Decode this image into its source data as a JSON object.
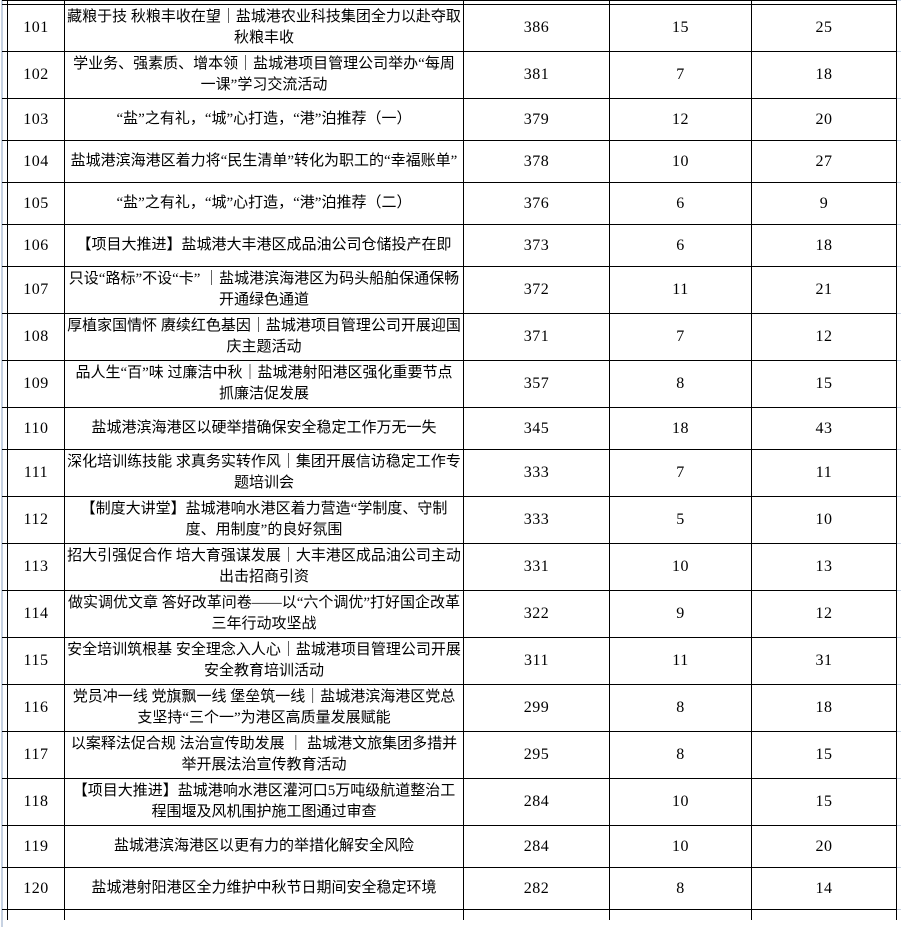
{
  "colors": {
    "table_border": "#000000",
    "sheet_gridline": "#c7d2e2",
    "text": "#000000",
    "background": "#ffffff"
  },
  "table": {
    "rows": [
      {
        "no": "101",
        "title": "藏粮于技  秋粮丰收在望｜盐城港农业科技集团全力以赴夺取秋粮丰收",
        "v1": "386",
        "v2": "15",
        "v3": "25"
      },
      {
        "no": "102",
        "title": "学业务、强素质、增本领｜盐城港项目管理公司举办“每周一课”学习交流活动",
        "v1": "381",
        "v2": "7",
        "v3": "18"
      },
      {
        "no": "103",
        "title": "“盐”之有礼，“城”心打造，“港”泊推荐（一）",
        "v1": "379",
        "v2": "12",
        "v3": "20"
      },
      {
        "no": "104",
        "title": "盐城港滨海港区着力将“民生清单”转化为职工的“幸福账单”",
        "v1": "378",
        "v2": "10",
        "v3": "27"
      },
      {
        "no": "105",
        "title": "“盐”之有礼，“城”心打造，“港”泊推荐（二）",
        "v1": "376",
        "v2": "6",
        "v3": "9"
      },
      {
        "no": "106",
        "title": "【项目大推进】盐城港大丰港区成品油公司仓储投产在即",
        "v1": "373",
        "v2": "6",
        "v3": "18"
      },
      {
        "no": "107",
        "title": "只设“路标”不设“卡” ｜盐城港滨海港区为码头船舶保通保畅开通绿色通道",
        "v1": "372",
        "v2": "11",
        "v3": "21"
      },
      {
        "no": "108",
        "title": "厚植家国情怀  赓续红色基因｜盐城港项目管理公司开展迎国庆主题活动",
        "v1": "371",
        "v2": "7",
        "v3": "12"
      },
      {
        "no": "109",
        "title": "品人生“百”味  过廉洁中秋｜盐城港射阳港区强化重要节点  抓廉洁促发展",
        "v1": "357",
        "v2": "8",
        "v3": "15"
      },
      {
        "no": "110",
        "title": "盐城港滨海港区以硬举措确保安全稳定工作万无一失",
        "v1": "345",
        "v2": "18",
        "v3": "43"
      },
      {
        "no": "111",
        "title": "深化培训练技能  求真务实转作风｜集团开展信访稳定工作专题培训会",
        "v1": "333",
        "v2": "7",
        "v3": "11"
      },
      {
        "no": "112",
        "title": "【制度大讲堂】盐城港响水港区着力营造“学制度、守制度、用制度”的良好氛围",
        "v1": "333",
        "v2": "5",
        "v3": "10"
      },
      {
        "no": "113",
        "title": "招大引强促合作  培大育强谋发展｜大丰港区成品油公司主动出击招商引资",
        "v1": "331",
        "v2": "10",
        "v3": "13"
      },
      {
        "no": "114",
        "title": "做实调优文章  答好改革问卷——以“六个调优”打好国企改革三年行动攻坚战",
        "v1": "322",
        "v2": "9",
        "v3": "12"
      },
      {
        "no": "115",
        "title": "安全培训筑根基  安全理念入人心｜盐城港项目管理公司开展安全教育培训活动",
        "v1": "311",
        "v2": "11",
        "v3": "31"
      },
      {
        "no": "116",
        "title": "党员冲一线  党旗飘一线  堡垒筑一线｜盐城港滨海港区党总支坚持“三个一”为港区高质量发展赋能",
        "v1": "299",
        "v2": "8",
        "v3": "18"
      },
      {
        "no": "117",
        "title": "以案释法促合规  法治宣传助发展 ｜ 盐城港文旅集团多措并举开展法治宣传教育活动",
        "v1": "295",
        "v2": "8",
        "v3": "15"
      },
      {
        "no": "118",
        "title": "【项目大推进】盐城港响水港区灌河口5万吨级航道整治工程围堰及风机围护施工图通过审查",
        "v1": "284",
        "v2": "10",
        "v3": "15"
      },
      {
        "no": "119",
        "title": "盐城港滨海港区以更有力的举措化解安全风险",
        "v1": "284",
        "v2": "10",
        "v3": "20"
      },
      {
        "no": "120",
        "title": "盐城港射阳港区全力维护中秋节日期间安全稳定环境",
        "v1": "282",
        "v2": "8",
        "v3": "14"
      }
    ]
  }
}
